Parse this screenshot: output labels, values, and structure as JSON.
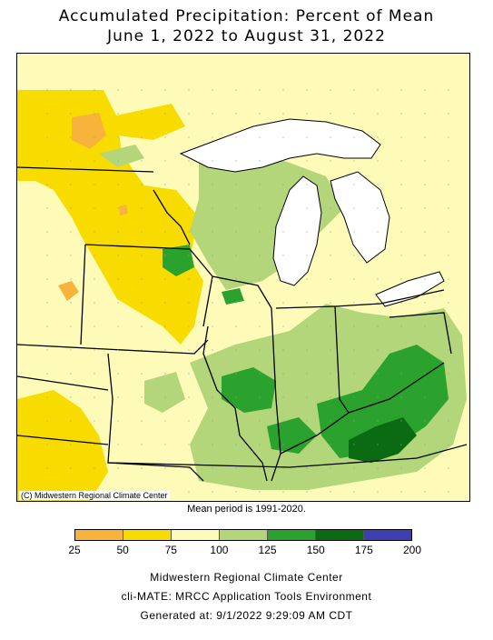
{
  "title": {
    "line1": "Accumulated Precipitation: Percent of Mean",
    "line2": "June 1, 2022 to August 31, 2022"
  },
  "map": {
    "credit": "(C) Midwestern Regional Climate Center",
    "region": "Midwest United States",
    "palette": {
      "below_50": "#f7b33c",
      "p50_75": "#f8dc00",
      "p75_100": "#fefbb9",
      "p100_125": "#b3d67a",
      "p125_150": "#2aa22d",
      "p150_175": "#0b6b12",
      "p175_200": "#3f3fb4",
      "water": "#ffffff"
    }
  },
  "mean_period": "Mean period is 1991-2020.",
  "legend": {
    "ticks": [
      "25",
      "50",
      "75",
      "100",
      "125",
      "150",
      "175",
      "200"
    ],
    "colors": [
      "#f7b33c",
      "#f8dc00",
      "#fefbb9",
      "#b3d67a",
      "#2aa22d",
      "#0b6b12",
      "#3f3fb4"
    ]
  },
  "footer": {
    "org": "Midwestern Regional Climate Center",
    "app": "cli-MATE: MRCC Application Tools Environment",
    "generated": "Generated at: 9/1/2022 9:29:09 AM CDT"
  }
}
